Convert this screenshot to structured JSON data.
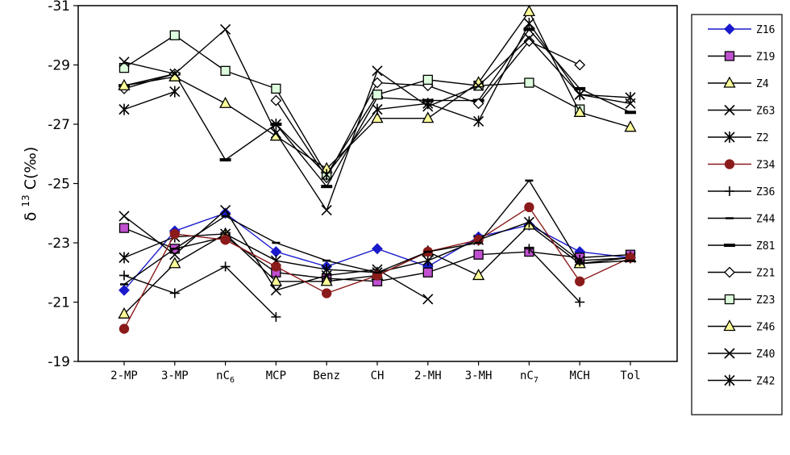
{
  "chart_data": {
    "type": "line",
    "title": "",
    "xlabel": "",
    "ylabel": "δ 13C(‰)",
    "ylabel_parts": {
      "delta": "δ",
      "sup": "13",
      "rest": "C(‰)"
    },
    "ylim": [
      -19,
      -31
    ],
    "yticks": [
      -31,
      -29,
      -27,
      -25,
      -23,
      -21,
      -19
    ],
    "ytick_labels": [
      "-31",
      "-29",
      "-27",
      "-25",
      "-23",
      "-21",
      "-19"
    ],
    "categories": [
      "2-MP",
      "3-MP",
      "nC6",
      "MCP",
      "Benz",
      "CH",
      "2-MH",
      "3-MH",
      "nC7",
      "MCH",
      "Tol"
    ],
    "category_labels": [
      {
        "main": "2-MP",
        "sub": ""
      },
      {
        "main": "3-MP",
        "sub": ""
      },
      {
        "main": "nC",
        "sub": "6"
      },
      {
        "main": "MCP",
        "sub": ""
      },
      {
        "main": "Benz",
        "sub": ""
      },
      {
        "main": "CH",
        "sub": ""
      },
      {
        "main": "2-MH",
        "sub": ""
      },
      {
        "main": "3-MH",
        "sub": ""
      },
      {
        "main": "nC",
        "sub": "7"
      },
      {
        "main": "MCH",
        "sub": ""
      },
      {
        "main": "Tol",
        "sub": ""
      }
    ],
    "legend_position": "right",
    "series": [
      {
        "name": "Z16",
        "marker": "diamond-filled",
        "color": "#1a1acc",
        "fill": "#1a1acc",
        "values": [
          -21.4,
          -23.4,
          -24.0,
          -22.7,
          -22.2,
          -22.8,
          -22.2,
          -23.2,
          -23.6,
          -22.7,
          -22.5
        ]
      },
      {
        "name": "Z19",
        "marker": "square-filled",
        "color": "#000000",
        "fill": "#c050d0",
        "values": [
          -23.5,
          -22.8,
          -23.2,
          -22.0,
          -21.8,
          -21.7,
          -22.0,
          -22.6,
          -22.7,
          -22.5,
          -22.6
        ]
      },
      {
        "name": "Z4",
        "marker": "triangle-filled",
        "color": "#000000",
        "fill": "#ffff99",
        "values": [
          -20.6,
          -22.3,
          -23.3,
          -21.7,
          -21.7,
          -21.9,
          -22.7,
          -21.9,
          -23.6,
          -22.3,
          -22.5
        ]
      },
      {
        "name": "Z63",
        "marker": "x",
        "color": "#000000",
        "fill": "none",
        "values": [
          -23.9,
          -22.6,
          -24.1,
          -21.4,
          -21.9,
          -22.1,
          -21.1,
          null,
          null,
          null,
          null
        ]
      },
      {
        "name": "Z2",
        "marker": "asterisk",
        "color": "#000000",
        "fill": "none",
        "values": [
          -22.5,
          -23.2,
          -23.3,
          -22.4,
          -22.1,
          -22.0,
          -22.4,
          -23.1,
          -23.7,
          -22.4,
          -22.5
        ]
      },
      {
        "name": "Z34",
        "marker": "circle-filled",
        "color": "#8b1a1a",
        "fill": "#8b1a1a",
        "values": [
          -20.1,
          -23.3,
          -23.1,
          -22.2,
          -21.3,
          -21.9,
          -22.7,
          -23.1,
          -24.2,
          -21.7,
          -22.5
        ]
      },
      {
        "name": "Z36",
        "marker": "plus",
        "color": "#000000",
        "fill": "none",
        "values": [
          -21.9,
          -21.3,
          -22.2,
          -20.5,
          null,
          null,
          null,
          null,
          -22.8,
          -21.0,
          null
        ]
      },
      {
        "name": "Z44",
        "marker": "dash",
        "color": "#000000",
        "fill": "none",
        "values": [
          -21.6,
          -22.8,
          -23.9,
          -23.0,
          -22.4,
          -22.0,
          -22.7,
          -23.0,
          -25.1,
          -22.3,
          -22.4
        ]
      },
      {
        "name": "Z81",
        "marker": "bar",
        "color": "#000000",
        "fill": "none",
        "values": [
          -28.3,
          -28.7,
          -25.8,
          -27.0,
          -24.9,
          -27.9,
          -27.8,
          -27.8,
          -30.2,
          -28.2,
          -27.4
        ]
      },
      {
        "name": "Z21",
        "marker": "diamond-open",
        "color": "#000000",
        "fill": "#ffffff",
        "values": [
          -28.2,
          -28.7,
          null,
          -27.8,
          -25.2,
          -28.4,
          -28.3,
          -27.7,
          -29.8,
          -29.0,
          null
        ]
      },
      {
        "name": "Z23",
        "marker": "square-open",
        "color": "#000000",
        "fill": "#ddffdd",
        "values": [
          -28.9,
          -30.0,
          -28.8,
          -28.2,
          -25.3,
          -28.0,
          -28.5,
          -28.3,
          -28.4,
          -27.5,
          null
        ]
      },
      {
        "name": "Z46",
        "marker": "triangle-open",
        "color": "#000000",
        "fill": "#ffff99",
        "values": [
          -28.3,
          -28.6,
          -27.7,
          -26.6,
          -25.5,
          -27.2,
          -27.2,
          -28.4,
          -30.8,
          -27.4,
          -26.9
        ]
      },
      {
        "name": "Z40",
        "marker": "x",
        "color": "#000000",
        "fill": "none",
        "values": [
          -29.1,
          -28.7,
          -30.2,
          -26.7,
          -24.1,
          -28.8,
          -27.6,
          -28.3,
          -29.9,
          -28.0,
          -27.7
        ]
      },
      {
        "name": "Z42",
        "marker": "asterisk",
        "color": "#000000",
        "fill": "none",
        "values": [
          -27.5,
          -28.1,
          null,
          -27.0,
          -25.3,
          -27.5,
          -27.7,
          -27.1,
          -30.4,
          -28.0,
          -27.9
        ]
      }
    ]
  }
}
